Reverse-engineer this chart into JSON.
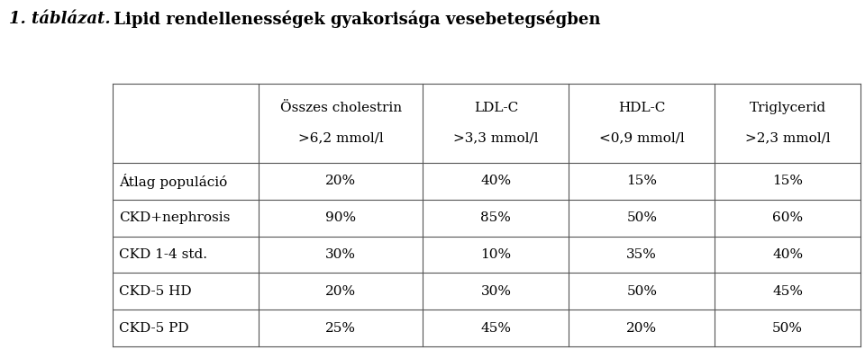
{
  "title_bold": "1. táblázat.",
  "title_rest": " Lipid rendellenességek gyakorisága vesebetegségben",
  "col_headers_line1": [
    "Összes cholestrin",
    "LDL-C",
    "HDL-C",
    "Triglycerid"
  ],
  "col_headers_line2": [
    ">6,2 mmol/l",
    ">3,3 mmol/l",
    "<0,9 mmol/l",
    ">2,3 mmol/l"
  ],
  "row_labels": [
    "Átlag populáció",
    "CKD+nephrosis",
    "CKD 1-4 std.",
    "CKD-5 HD",
    "CKD-5 PD"
  ],
  "data": [
    [
      "20%",
      "40%",
      "15%",
      "15%"
    ],
    [
      "90%",
      "85%",
      "50%",
      "60%"
    ],
    [
      "30%",
      "10%",
      "35%",
      "40%"
    ],
    [
      "20%",
      "30%",
      "50%",
      "45%"
    ],
    [
      "25%",
      "45%",
      "20%",
      "50%"
    ]
  ],
  "bg_color": "#ffffff",
  "text_color": "#000000",
  "line_color": "#555555",
  "title_fontsize": 13,
  "header_fontsize": 11,
  "cell_fontsize": 11
}
